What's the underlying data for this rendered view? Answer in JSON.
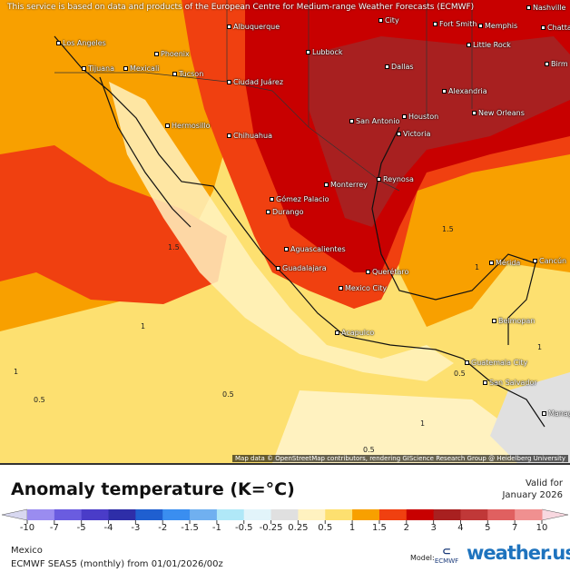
{
  "notice": "This service is based on data and products of the European Centre for Medium-range Weather Forecasts (ECMWF)",
  "attribution": "Map data © OpenStreetMap contributors, rendering GIScience Research Group @ Heidelberg University",
  "map": {
    "cities": [
      "Los Angeles",
      "Tijuana",
      "Mexicali",
      "Phoenix",
      "Tucson",
      "Albuquerque",
      "Lubbock",
      "Ciudad Juárez",
      "Hermosillo",
      "Chihuahua",
      "Dallas",
      "Fort Smith",
      "Memphis",
      "Little Rock",
      "Nashville",
      "Chatta",
      "Birm",
      "City",
      "Alexandria",
      "San Antonio",
      "Houston",
      "New Orleans",
      "Victoria",
      "Monterrey",
      "Reynosa",
      "Gómez Palacio",
      "Durango",
      "Aguascalientes",
      "Guadalajara",
      "Querétaro",
      "Mexico City",
      "Acapulco",
      "Mérida",
      "Cancún",
      "Belmopan",
      "Guatemala City",
      "San Salvador",
      "Managua"
    ],
    "contour_labels": [
      "1.5",
      "1",
      "1",
      "0.5",
      "0.5",
      "0.5",
      "1",
      "1.5",
      "1",
      "1",
      "0.5"
    ]
  },
  "legend": {
    "title": "Anomaly temperature (K=°C)",
    "valid_label": "Valid for",
    "valid_date": "January 2026",
    "ticks": [
      "-10",
      "-7",
      "-5",
      "-4",
      "-3",
      "-2",
      "-1.5",
      "-1",
      "-0.5",
      "-0.25",
      "0.25",
      "0.5",
      "1",
      "1.5",
      "2",
      "3",
      "4",
      "5",
      "7",
      "10"
    ],
    "colors": [
      "#d8d8f0",
      "#9a8cf0",
      "#6a5ce0",
      "#4a3cc8",
      "#2e2ea8",
      "#1f5fd0",
      "#3a8ef0",
      "#70b0f0",
      "#b0e8f8",
      "#e2f4fa",
      "#e0e0e0",
      "#fff2c0",
      "#fde070",
      "#f8a000",
      "#f04010",
      "#c80000",
      "#a82020",
      "#c03838",
      "#e06060",
      "#f09090",
      "#f8d8e0"
    ],
    "region": "Mexico",
    "model_run": "ECMWF SEAS5 (monthly) from 01/01/2026/00z",
    "model_label": "Model:",
    "ecmwf_logo": "ECMWF",
    "brand": "weather.us"
  }
}
